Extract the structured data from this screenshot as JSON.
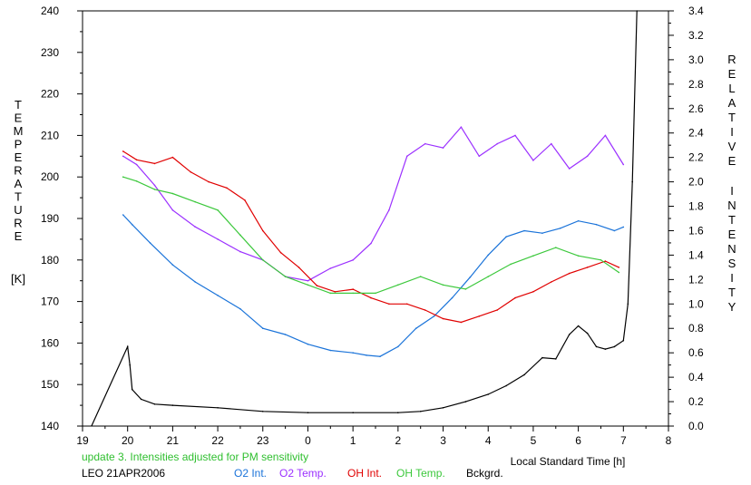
{
  "chart_data": {
    "type": "line",
    "left_axis_label": [
      "T",
      "E",
      "M",
      "P",
      "E",
      "R",
      "A",
      "T",
      "U",
      "R",
      "E"
    ],
    "left_axis_unit": "[K]",
    "right_axis_label_1": [
      "R",
      "E",
      "L",
      "A",
      "T",
      "I",
      "V",
      "E"
    ],
    "right_axis_label_2": [
      "I",
      "N",
      "T",
      "E",
      "N",
      "S",
      "I",
      "T",
      "Y"
    ],
    "xlabel": "Local Standard Time [h]",
    "note": "update 3. Intensities adjusted for PM sensitivity",
    "station": "LEO 21APR2006",
    "x_ticks": [
      "19",
      "20",
      "21",
      "22",
      "23",
      "0",
      "1",
      "2",
      "3",
      "4",
      "5",
      "6",
      "7",
      "8"
    ],
    "y_left_ticks": [
      "140",
      "150",
      "160",
      "170",
      "180",
      "190",
      "200",
      "210",
      "220",
      "230",
      "240"
    ],
    "y_right_ticks": [
      "0.0",
      "0.2",
      "0.4",
      "0.6",
      "0.8",
      "1.0",
      "1.2",
      "1.4",
      "1.6",
      "1.8",
      "2.0",
      "2.2",
      "2.4",
      "2.6",
      "2.8",
      "3.0",
      "3.2",
      "3.4"
    ],
    "x_range": [
      19,
      32
    ],
    "y_left_range": [
      140,
      240
    ],
    "y_right_range": [
      0,
      3.4
    ],
    "series": [
      {
        "name": "O2 Int.",
        "color": "#1a73d9",
        "axis": "right",
        "x": [
          19.9,
          20.1,
          20.5,
          21.0,
          21.5,
          22.0,
          22.5,
          23.0,
          23.5,
          24.0,
          24.5,
          25.0,
          25.3,
          25.6,
          26.0,
          26.4,
          26.8,
          27.2,
          27.6,
          28.0,
          28.4,
          28.8,
          29.2,
          29.6,
          30.0,
          30.4,
          30.8,
          31.0
        ],
        "y": [
          1.73,
          1.65,
          1.5,
          1.32,
          1.18,
          1.07,
          0.96,
          0.8,
          0.75,
          0.67,
          0.62,
          0.6,
          0.58,
          0.57,
          0.65,
          0.8,
          0.9,
          1.05,
          1.22,
          1.4,
          1.55,
          1.6,
          1.58,
          1.62,
          1.68,
          1.65,
          1.6,
          1.63
        ]
      },
      {
        "name": "O2 Temp.",
        "color": "#9b30ff",
        "axis": "left",
        "x": [
          19.9,
          20.2,
          20.6,
          21.0,
          21.5,
          22.0,
          22.5,
          23.0,
          23.5,
          24.0,
          24.5,
          25.0,
          25.4,
          25.8,
          26.2,
          26.6,
          27.0,
          27.4,
          27.8,
          28.2,
          28.6,
          29.0,
          29.4,
          29.8,
          30.2,
          30.6,
          31.0
        ],
        "y": [
          205,
          203,
          198,
          192,
          188,
          185,
          182,
          180,
          176,
          175,
          178,
          180,
          184,
          192,
          205,
          208,
          207,
          212,
          205,
          208,
          210,
          204,
          208,
          202,
          205,
          210,
          203
        ]
      },
      {
        "name": "OH Int.",
        "color": "#e00000",
        "axis": "right",
        "x": [
          19.9,
          20.2,
          20.6,
          21.0,
          21.4,
          21.8,
          22.2,
          22.6,
          23.0,
          23.4,
          23.8,
          24.2,
          24.6,
          25.0,
          25.4,
          25.8,
          26.2,
          26.6,
          27.0,
          27.4,
          27.8,
          28.2,
          28.6,
          29.0,
          29.4,
          29.8,
          30.2,
          30.6,
          30.9
        ],
        "y": [
          2.25,
          2.18,
          2.15,
          2.2,
          2.08,
          2.0,
          1.95,
          1.85,
          1.6,
          1.42,
          1.3,
          1.15,
          1.1,
          1.12,
          1.05,
          1.0,
          1.0,
          0.95,
          0.88,
          0.85,
          0.9,
          0.95,
          1.05,
          1.1,
          1.18,
          1.25,
          1.3,
          1.35,
          1.3
        ]
      },
      {
        "name": "OH Temp.",
        "color": "#3cc83c",
        "axis": "left",
        "x": [
          19.9,
          20.2,
          20.6,
          21.0,
          21.5,
          22.0,
          22.5,
          23.0,
          23.5,
          24.0,
          24.5,
          25.0,
          25.5,
          26.0,
          26.5,
          27.0,
          27.5,
          28.0,
          28.5,
          29.0,
          29.5,
          30.0,
          30.5,
          30.9
        ],
        "y": [
          200,
          199,
          197,
          196,
          194,
          192,
          186,
          180,
          176,
          174,
          172,
          172,
          172,
          174,
          176,
          174,
          173,
          176,
          179,
          181,
          183,
          181,
          180,
          177
        ]
      },
      {
        "name": "Bckgrd.",
        "color": "#000000",
        "axis": "right",
        "x": [
          19.2,
          20.0,
          20.05,
          20.1,
          20.3,
          20.6,
          21.0,
          22.0,
          23.0,
          24.0,
          25.0,
          26.0,
          26.5,
          27.0,
          27.5,
          28.0,
          28.4,
          28.8,
          29.2,
          29.5,
          29.8,
          30.0,
          30.2,
          30.4,
          30.6,
          30.8,
          31.0,
          31.1,
          31.2,
          31.3
        ],
        "y": [
          0.0,
          0.65,
          0.5,
          0.3,
          0.22,
          0.18,
          0.17,
          0.15,
          0.12,
          0.11,
          0.11,
          0.11,
          0.12,
          0.15,
          0.2,
          0.26,
          0.33,
          0.42,
          0.56,
          0.55,
          0.75,
          0.82,
          0.76,
          0.65,
          0.63,
          0.65,
          0.7,
          1.0,
          2.0,
          3.4
        ]
      }
    ],
    "legend": [
      {
        "label": "O2 Int.",
        "color": "#1a73d9"
      },
      {
        "label": "O2 Temp.",
        "color": "#9b30ff"
      },
      {
        "label": "OH Int.",
        "color": "#e00000"
      },
      {
        "label": "OH Temp.",
        "color": "#3cc83c"
      },
      {
        "label": "Bckgrd.",
        "color": "#000000"
      }
    ],
    "note_color": "#2fbf2f",
    "grid": false,
    "legend_placement": "bottom"
  }
}
